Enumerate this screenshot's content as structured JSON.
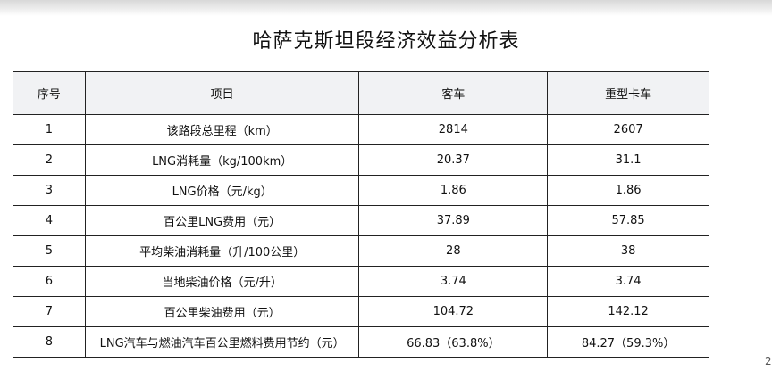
{
  "title": "哈萨克斯坦段经济效益分析表",
  "table": {
    "header": [
      "序号",
      "项目",
      "客车",
      "重型卡车"
    ],
    "rows": [
      [
        "1",
        "该路段总里程（km）",
        "2814",
        "2607"
      ],
      [
        "2",
        "LNG消耗量（kg/100km）",
        "20.37",
        "31.1"
      ],
      [
        "3",
        "LNG价格（元/kg）",
        "1.86",
        "1.86"
      ],
      [
        "4",
        "百公里LNG费用（元）",
        "37.89",
        "57.85"
      ],
      [
        "5",
        "平均柴油消耗量（升/100公里）",
        "28",
        "38"
      ],
      [
        "6",
        "当地柴油价格（元/升）",
        "3.74",
        "3.74"
      ],
      [
        "7",
        "百公里柴油费用（元）",
        "104.72",
        "142.12"
      ],
      [
        "8",
        "LNG汽车与燃油汽车百公里燃料费用节约（元）",
        "66.83（63.8%）",
        "84.27（59.3%）"
      ]
    ]
  },
  "page_number": "2"
}
